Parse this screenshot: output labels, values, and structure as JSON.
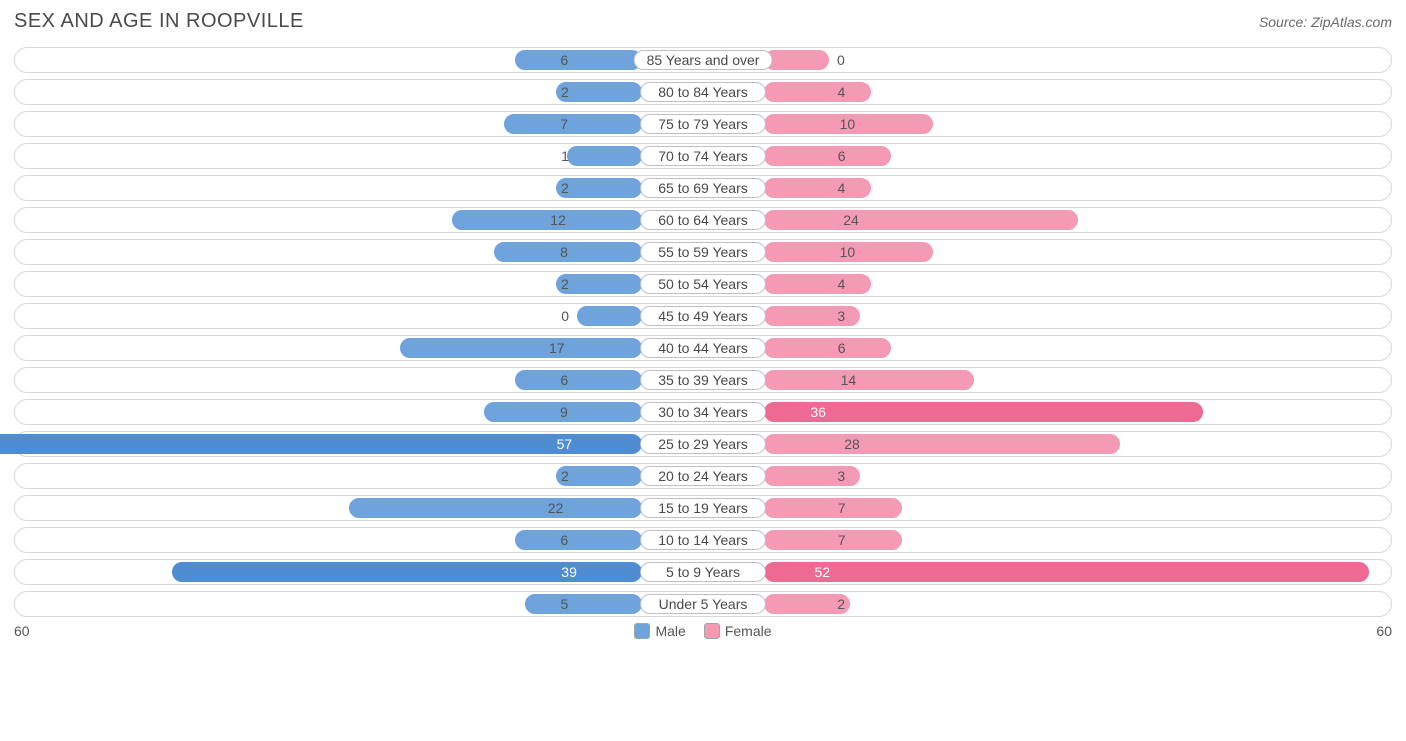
{
  "title": "SEX AND AGE IN ROOPVILLE",
  "source_label": "Source:",
  "source_name": "ZipAtlas.com",
  "chart": {
    "type": "population-pyramid",
    "axis_max": 60,
    "axis_label_left": "60",
    "axis_label_right": "60",
    "colors": {
      "male_fill": "#6ea3db",
      "male_fill_strong": "#4f8dd3",
      "female_fill": "#f49ab5",
      "female_fill_strong": "#ee6a93",
      "track_border": "#d8d8d8",
      "pill_border": "#bfbfbf",
      "text": "#4a4a4a",
      "inside_text": "#ffffff"
    },
    "legend": [
      {
        "label": "Male",
        "color": "#6ea3db"
      },
      {
        "label": "Female",
        "color": "#f49ab5"
      }
    ],
    "age_groups": [
      {
        "label": "85 Years and over",
        "male": 6,
        "female": 0
      },
      {
        "label": "80 to 84 Years",
        "male": 2,
        "female": 4
      },
      {
        "label": "75 to 79 Years",
        "male": 7,
        "female": 10
      },
      {
        "label": "70 to 74 Years",
        "male": 1,
        "female": 6
      },
      {
        "label": "65 to 69 Years",
        "male": 2,
        "female": 4
      },
      {
        "label": "60 to 64 Years",
        "male": 12,
        "female": 24
      },
      {
        "label": "55 to 59 Years",
        "male": 8,
        "female": 10
      },
      {
        "label": "50 to 54 Years",
        "male": 2,
        "female": 4
      },
      {
        "label": "45 to 49 Years",
        "male": 0,
        "female": 3
      },
      {
        "label": "40 to 44 Years",
        "male": 17,
        "female": 6
      },
      {
        "label": "35 to 39 Years",
        "male": 6,
        "female": 14
      },
      {
        "label": "30 to 34 Years",
        "male": 9,
        "female": 36
      },
      {
        "label": "25 to 29 Years",
        "male": 57,
        "female": 28
      },
      {
        "label": "20 to 24 Years",
        "male": 2,
        "female": 3
      },
      {
        "label": "15 to 19 Years",
        "male": 22,
        "female": 7
      },
      {
        "label": "10 to 14 Years",
        "male": 6,
        "female": 7
      },
      {
        "label": "5 to 9 Years",
        "male": 39,
        "female": 52
      },
      {
        "label": "Under 5 Years",
        "male": 5,
        "female": 2
      }
    ]
  }
}
